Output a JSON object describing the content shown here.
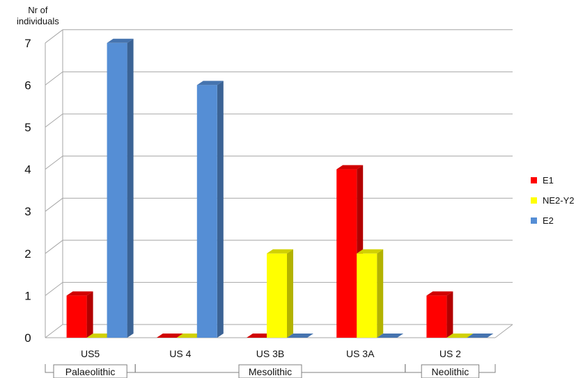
{
  "chart_data": {
    "type": "bar",
    "y_axis_title": [
      "Nr of",
      "individuals"
    ],
    "ylim": [
      0,
      7
    ],
    "y_ticks": [
      "0",
      "1",
      "2",
      "3",
      "4",
      "5",
      "6",
      "7"
    ],
    "grid": true,
    "legend_position": "right",
    "categories": [
      "US5",
      "US 4",
      "US 3B",
      "US 3A",
      "US 2"
    ],
    "periods": [
      {
        "label": "Palaeolithic",
        "categories": [
          "US5"
        ]
      },
      {
        "label": "Mesolithic",
        "categories": [
          "US 4",
          "US 3B",
          "US 3A"
        ]
      },
      {
        "label": "Neolithic",
        "categories": [
          "US 2"
        ]
      }
    ],
    "series": [
      {
        "name": "E1",
        "color": "#ff0000",
        "values": [
          1,
          0,
          0,
          4,
          1
        ]
      },
      {
        "name": "NE2-Y2",
        "color": "#ffff00",
        "values": [
          0,
          0,
          2,
          2,
          0
        ]
      },
      {
        "name": "E2",
        "color": "#558ed5",
        "values": [
          7,
          6,
          0,
          0,
          0
        ]
      }
    ]
  }
}
